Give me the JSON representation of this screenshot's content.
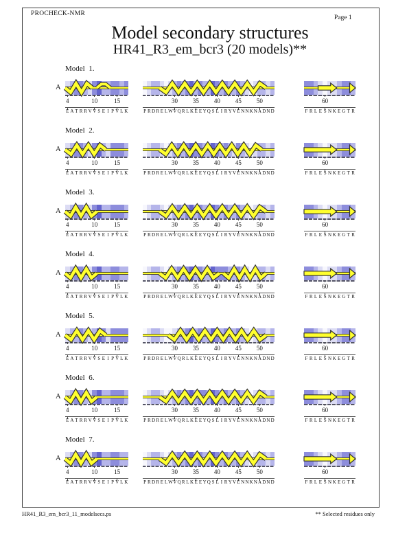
{
  "page": {
    "header_left": "PROCHECK-NMR",
    "page_label": "Page  1",
    "title": "Model secondary structures",
    "subtitle": "HR41_R3_em_bcr3 (20 models)**",
    "footer_left": "HR41_R3_em_bcr3_11_modelsecs.ps",
    "footer_right": "** Selected residues only"
  },
  "chain_label": "A",
  "colors": {
    "structure_yellow": "#ffff2e",
    "structure_outline": "#333333",
    "axis_tick": "#444444",
    "ruler_line": "#555555",
    "band_dash": "#555566",
    "palette": [
      "#f7f7fd",
      "#dcdcf4",
      "#b5b5ea",
      "#8d8ddc",
      "#6464ce"
    ]
  },
  "segments": [
    {
      "first": 4,
      "last": 17,
      "seq": "EATRRVVSEIPVLK",
      "ticks": [
        4,
        10,
        15
      ]
    },
    {
      "first": 23,
      "last": 53,
      "seq": "PRDRELWVQRLKEEYQSLIRYVENNKNADND",
      "ticks": [
        30,
        35,
        40,
        45,
        50
      ]
    },
    {
      "first": 56,
      "last": 66,
      "seq": "FRLESNKEGTR",
      "ticks": [
        60
      ]
    }
  ],
  "models": [
    {
      "label": "Model  1.",
      "shades": [
        [
          1,
          2,
          3,
          3,
          2,
          1,
          3,
          4,
          2,
          2,
          3,
          3,
          2,
          3
        ],
        [
          0,
          1,
          2,
          2,
          1,
          0,
          1,
          2,
          3,
          2,
          3,
          4,
          2,
          3,
          2,
          2,
          4,
          3,
          2,
          3,
          2,
          2,
          3,
          2,
          1,
          0,
          1,
          2,
          2,
          1,
          2
        ],
        [
          3,
          3,
          2,
          1,
          0,
          1,
          1,
          2,
          3,
          3,
          2
        ]
      ],
      "ss": [
        [
          {
            "t": "helix",
            "a": 4,
            "b": 9
          },
          {
            "t": "bump",
            "a": 11,
            "b": 13
          }
        ],
        [
          {
            "t": "helix",
            "a": 27,
            "b": 51
          }
        ],
        [
          {
            "t": "strand",
            "a": 59,
            "b": 62
          },
          {
            "t": "end"
          }
        ]
      ]
    },
    {
      "label": "Model  2.",
      "shades": [
        [
          1,
          2,
          3,
          3,
          2,
          1,
          3,
          4,
          2,
          1,
          3,
          3,
          3,
          2
        ],
        [
          0,
          1,
          2,
          2,
          1,
          0,
          1,
          2,
          3,
          2,
          3,
          4,
          3,
          3,
          2,
          2,
          4,
          3,
          2,
          3,
          2,
          1,
          3,
          2,
          1,
          0,
          1,
          2,
          2,
          1,
          2
        ],
        [
          3,
          3,
          2,
          1,
          0,
          1,
          1,
          2,
          3,
          3,
          2
        ]
      ],
      "ss": [
        [
          {
            "t": "helix",
            "a": 4,
            "b": 12
          }
        ],
        [
          {
            "t": "helix",
            "a": 27,
            "b": 50
          }
        ],
        [
          {
            "t": "strand",
            "a": 56,
            "b": 62
          },
          {
            "t": "end"
          }
        ]
      ]
    },
    {
      "label": "Model  3.",
      "shades": [
        [
          1,
          2,
          3,
          3,
          2,
          1,
          3,
          4,
          2,
          2,
          3,
          3,
          3,
          2
        ],
        [
          0,
          1,
          2,
          2,
          1,
          0,
          1,
          2,
          3,
          2,
          3,
          4,
          2,
          3,
          2,
          2,
          4,
          3,
          2,
          3,
          2,
          2,
          3,
          2,
          1,
          0,
          1,
          2,
          2,
          1,
          2
        ],
        [
          3,
          3,
          2,
          1,
          0,
          1,
          1,
          2,
          3,
          3,
          2
        ]
      ],
      "ss": [
        [
          {
            "t": "helix",
            "a": 4,
            "b": 10
          }
        ],
        [
          {
            "t": "helix",
            "a": 27,
            "b": 51
          }
        ],
        [
          {
            "t": "strand",
            "a": 56,
            "b": 62
          },
          {
            "t": "end"
          }
        ]
      ]
    },
    {
      "label": "Model  4.",
      "shades": [
        [
          1,
          2,
          3,
          3,
          2,
          1,
          3,
          4,
          2,
          2,
          3,
          3,
          2,
          2
        ],
        [
          0,
          1,
          2,
          2,
          1,
          0,
          1,
          2,
          3,
          2,
          3,
          4,
          2,
          3,
          2,
          2,
          4,
          3,
          3,
          3,
          2,
          2,
          3,
          2,
          1,
          0,
          1,
          2,
          2,
          1,
          2
        ],
        [
          3,
          3,
          2,
          1,
          0,
          1,
          1,
          2,
          3,
          3,
          2
        ]
      ],
      "ss": [
        [
          {
            "t": "helix",
            "a": 4,
            "b": 10
          }
        ],
        [
          {
            "t": "helix",
            "a": 27,
            "b": 40
          },
          {
            "t": "helix",
            "a": 42,
            "b": 51
          }
        ],
        [
          {
            "t": "strand",
            "a": 56,
            "b": 62
          },
          {
            "t": "end"
          }
        ]
      ]
    },
    {
      "label": "Model  5.",
      "shades": [
        [
          1,
          2,
          2,
          3,
          2,
          1,
          2,
          4,
          3,
          1,
          3,
          3,
          3,
          3
        ],
        [
          0,
          1,
          2,
          2,
          1,
          0,
          0,
          1,
          2,
          2,
          3,
          4,
          2,
          3,
          2,
          2,
          4,
          3,
          2,
          3,
          2,
          2,
          3,
          2,
          1,
          0,
          1,
          2,
          2,
          1,
          2
        ],
        [
          3,
          3,
          2,
          1,
          0,
          1,
          1,
          2,
          3,
          3,
          2
        ]
      ],
      "ss": [
        [
          {
            "t": "helix",
            "a": 4,
            "b": 12
          }
        ],
        [
          {
            "t": "helix",
            "a": 29,
            "b": 51
          }
        ],
        [
          {
            "t": "strand",
            "a": 56,
            "b": 62
          },
          {
            "t": "end"
          }
        ]
      ]
    },
    {
      "label": "Model  6.",
      "shades": [
        [
          1,
          2,
          3,
          3,
          2,
          1,
          3,
          4,
          2,
          2,
          3,
          3,
          3,
          2
        ],
        [
          0,
          1,
          2,
          2,
          1,
          0,
          1,
          2,
          3,
          2,
          3,
          4,
          2,
          3,
          3,
          2,
          4,
          3,
          2,
          3,
          2,
          2,
          3,
          2,
          1,
          0,
          1,
          2,
          2,
          1,
          2
        ],
        [
          3,
          3,
          2,
          1,
          0,
          1,
          1,
          2,
          3,
          3,
          2
        ]
      ],
      "ss": [
        [
          {
            "t": "helix",
            "a": 4,
            "b": 10
          }
        ],
        [
          {
            "t": "helix",
            "a": 27,
            "b": 51
          }
        ],
        [
          {
            "t": "strand",
            "a": 56,
            "b": 62
          },
          {
            "t": "end"
          }
        ]
      ]
    },
    {
      "label": "Model  7.",
      "shades": [
        [
          1,
          2,
          3,
          3,
          2,
          1,
          3,
          4,
          2,
          2,
          3,
          3,
          2,
          2
        ],
        [
          0,
          1,
          2,
          2,
          1,
          0,
          1,
          2,
          3,
          2,
          3,
          4,
          2,
          3,
          2,
          2,
          4,
          3,
          2,
          3,
          2,
          2,
          3,
          2,
          1,
          0,
          1,
          2,
          2,
          1,
          2
        ],
        [
          3,
          3,
          2,
          1,
          0,
          1,
          1,
          2,
          3,
          3,
          2
        ]
      ],
      "ss": [
        [
          {
            "t": "helix",
            "a": 4,
            "b": 10
          }
        ],
        [
          {
            "t": "helix",
            "a": 27,
            "b": 51
          }
        ],
        [
          {
            "t": "strand",
            "a": 56,
            "b": 62
          },
          {
            "t": "end"
          }
        ]
      ]
    }
  ]
}
